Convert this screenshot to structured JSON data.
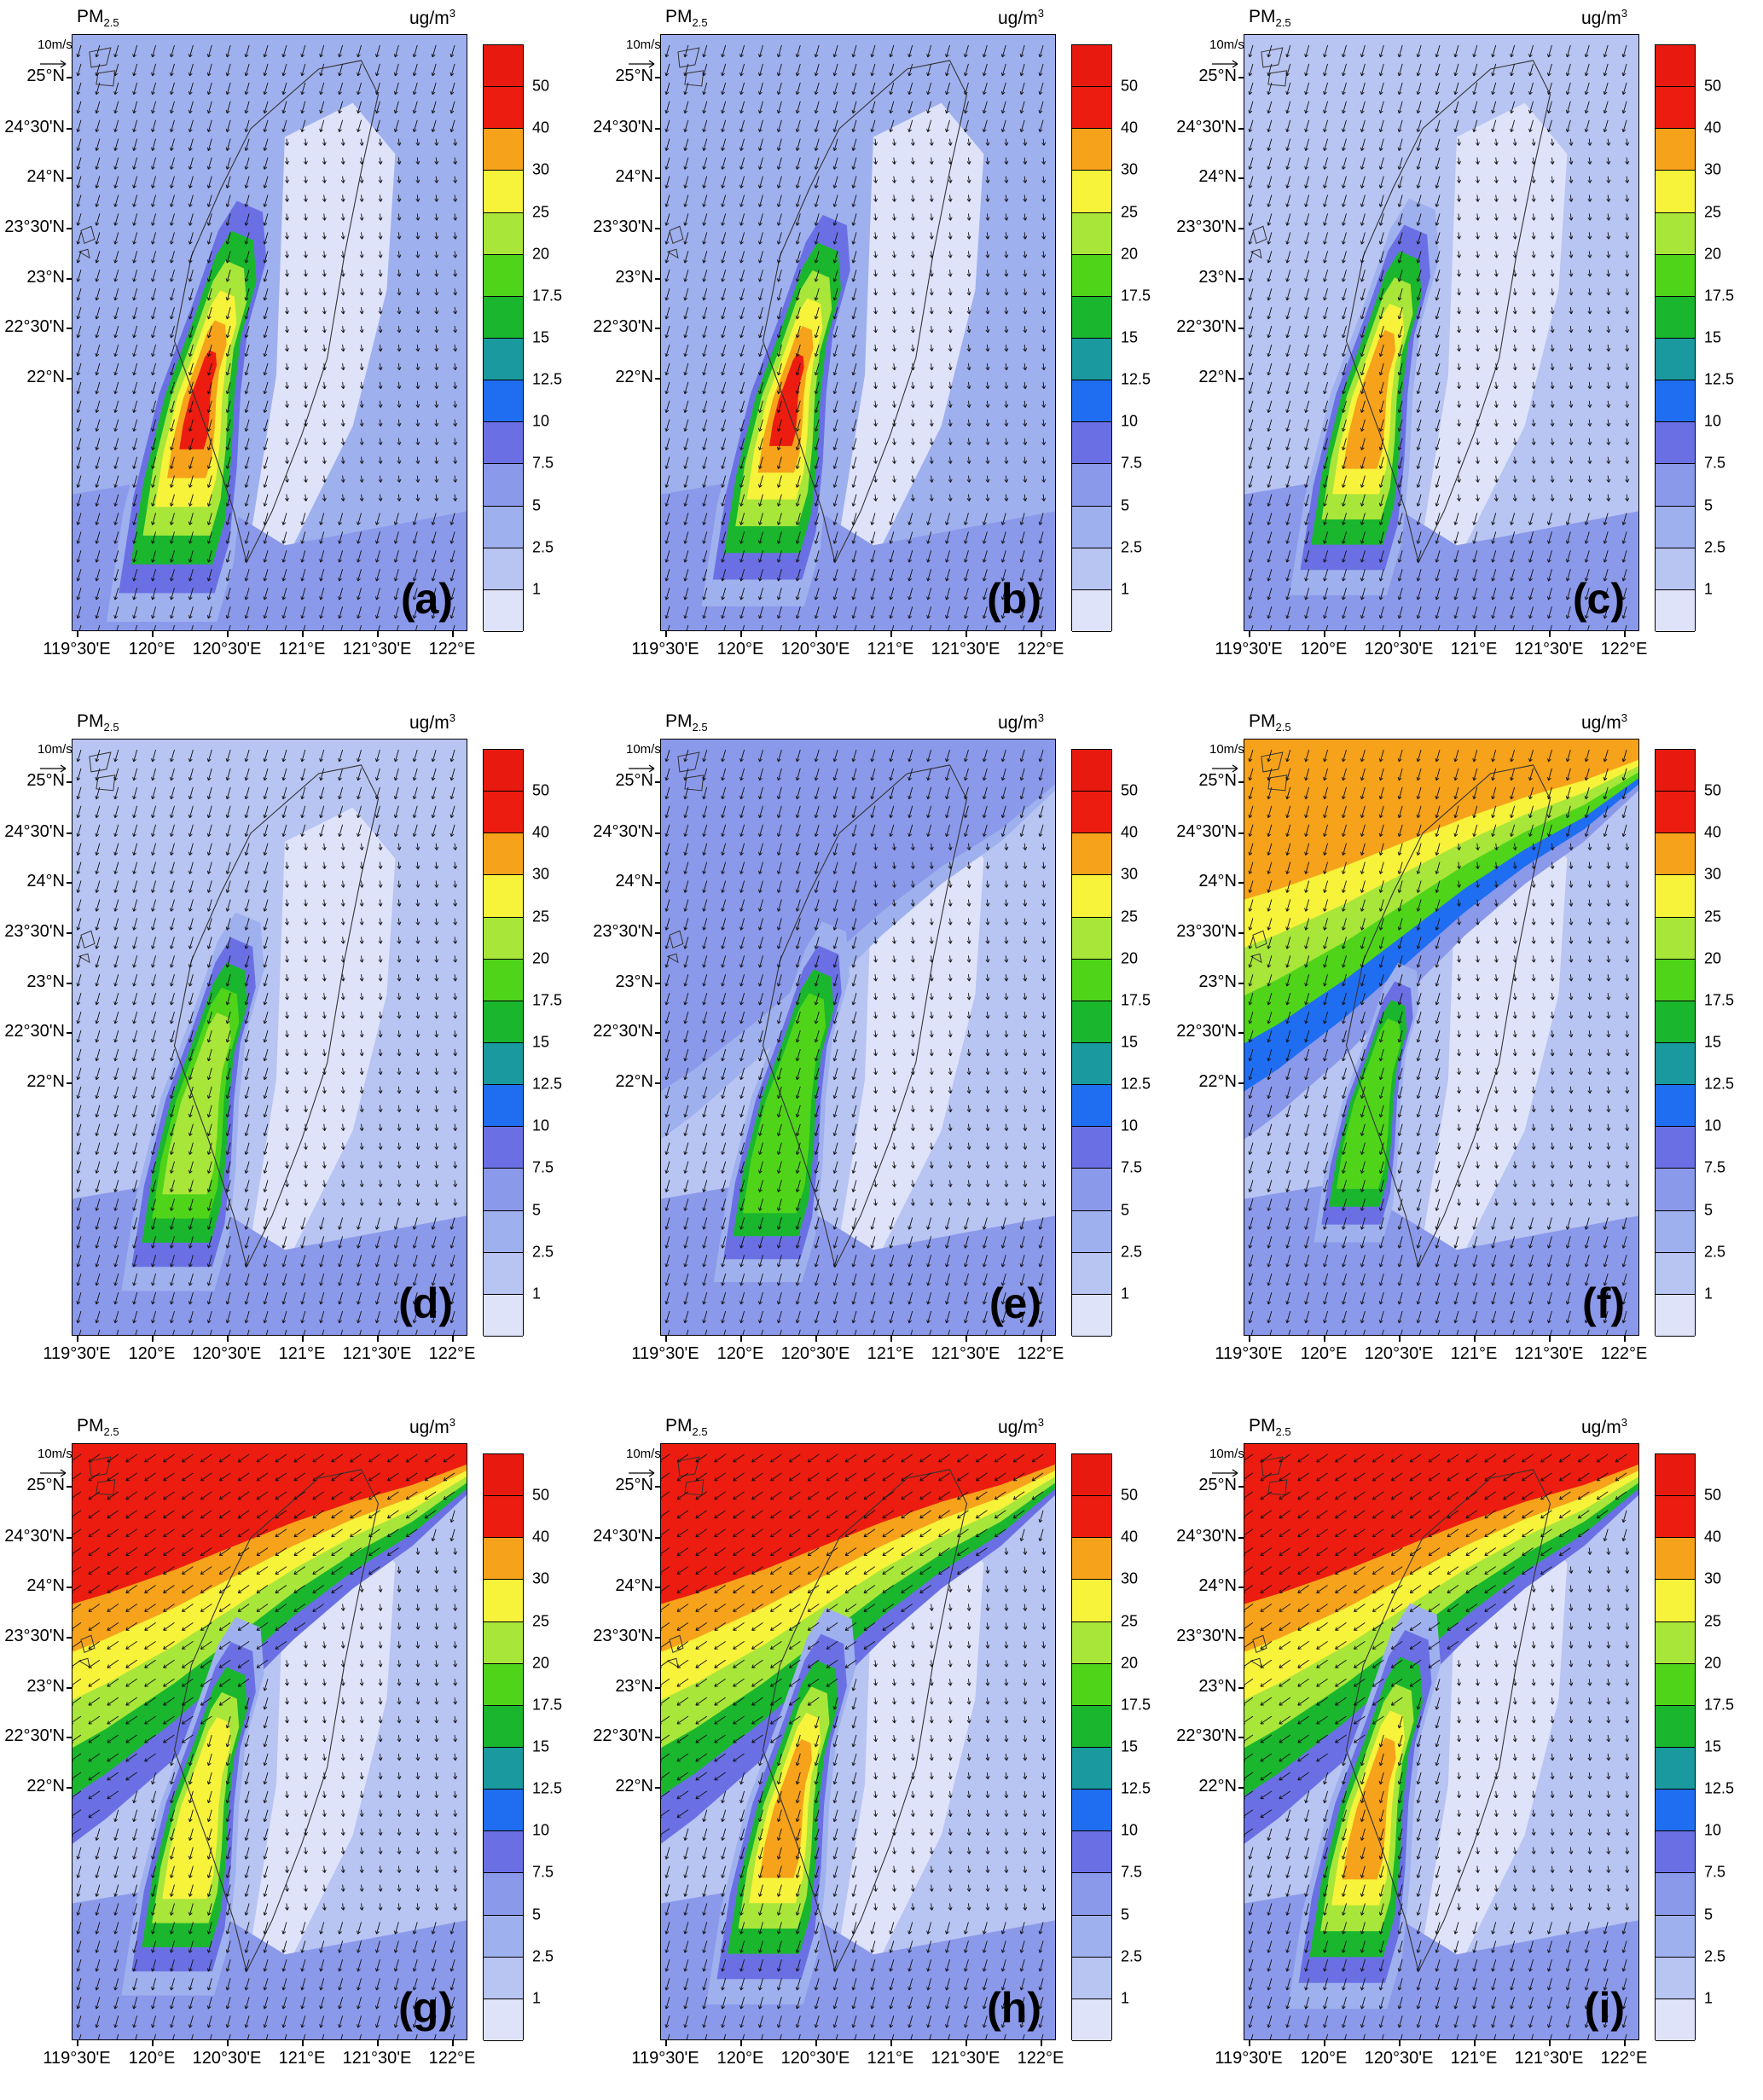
{
  "figure": {
    "title_main": "PM",
    "title_sub": "2.5",
    "unit_main": "ug/m",
    "unit_sup": "3",
    "reference_vector_label": "10m/s",
    "latitude_labels": [
      "25°N",
      "24°30'N",
      "24°N",
      "23°30'N",
      "23°N",
      "22°30'N",
      "22°N"
    ],
    "longitude_labels": [
      "119°30'E",
      "120°E",
      "120°30'E",
      "121°E",
      "121°30'E",
      "122°E"
    ],
    "colorbar": {
      "labels": [
        "1",
        "2.5",
        "5",
        "7.5",
        "10",
        "12.5",
        "15",
        "17.5",
        "20",
        "25",
        "30",
        "40",
        "50"
      ],
      "colors": [
        "#dfe3fa",
        "#b8c4f2",
        "#9fb0ee",
        "#8b99ea",
        "#6a70e4",
        "#1f6ef2",
        "#1a9a9e",
        "#1ab62e",
        "#4fd41a",
        "#a8e63a",
        "#f7f23a",
        "#f6a21a",
        "#ec1c10",
        "#e81a0f"
      ]
    }
  },
  "panels": [
    {
      "label": "(a)"
    },
    {
      "label": "(b)"
    },
    {
      "label": "(c)"
    },
    {
      "label": "(d)"
    },
    {
      "label": "(e)"
    },
    {
      "label": "(f)"
    },
    {
      "label": "(g)"
    },
    {
      "label": "(h)"
    },
    {
      "label": "(i)"
    }
  ]
}
